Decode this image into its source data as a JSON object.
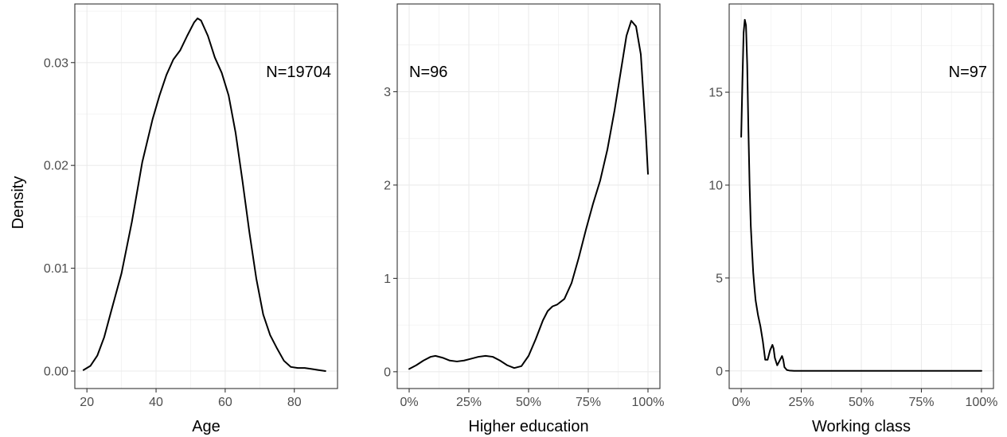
{
  "ylabel": "Density",
  "colors": {
    "line": "#000000",
    "grid": "#ebebeb",
    "panel_border": "#333333",
    "tick_text": "#4d4d4d"
  },
  "chart_data": [
    {
      "type": "line",
      "title": "",
      "xlabel": "Age",
      "ylabel": "Density",
      "annotation": "N=19704",
      "annotation_pos": "top-right",
      "xlim": [
        16.5,
        92.5
      ],
      "ylim": [
        -0.0017,
        0.0357
      ],
      "x_ticks": [
        20,
        40,
        60,
        80
      ],
      "x_tick_labels": [
        "20",
        "40",
        "60",
        "80"
      ],
      "y_ticks": [
        0,
        0.01,
        0.02,
        0.03
      ],
      "y_tick_labels": [
        "0.00",
        "0.01",
        "0.02",
        "0.03"
      ],
      "grid": true,
      "series": [
        {
          "x": [
            19,
            21,
            23,
            25,
            27,
            30,
            33,
            36,
            39,
            41,
            43,
            45,
            47,
            49,
            51,
            52,
            53,
            55,
            57,
            59,
            61,
            63,
            65,
            67,
            69,
            71,
            73,
            75,
            77,
            79,
            81,
            83,
            85,
            87,
            89
          ],
          "y": [
            0.0001,
            0.0005,
            0.0015,
            0.0033,
            0.0058,
            0.0095,
            0.0145,
            0.0203,
            0.0245,
            0.0268,
            0.0288,
            0.0303,
            0.0312,
            0.0326,
            0.0339,
            0.0343,
            0.0341,
            0.0326,
            0.0305,
            0.029,
            0.0268,
            0.0232,
            0.0185,
            0.0135,
            0.009,
            0.0055,
            0.0035,
            0.0022,
            0.001,
            0.0004,
            0.0003,
            0.0003,
            0.0002,
            0.0001,
            0.0
          ]
        }
      ]
    },
    {
      "type": "line",
      "title": "",
      "xlabel": "Higher education",
      "ylabel": "",
      "annotation": "N=96",
      "annotation_pos": "top-left",
      "xlim": [
        -0.05,
        1.05
      ],
      "ylim": [
        -0.18,
        3.94
      ],
      "x_ticks": [
        0,
        0.25,
        0.5,
        0.75,
        1
      ],
      "x_tick_labels": [
        "0%",
        "25%",
        "50%",
        "75%",
        "100%"
      ],
      "y_ticks": [
        0,
        1,
        2,
        3
      ],
      "y_tick_labels": [
        "0",
        "1",
        "2",
        "3"
      ],
      "grid": true,
      "series": [
        {
          "x": [
            0.0,
            0.03,
            0.06,
            0.09,
            0.11,
            0.14,
            0.17,
            0.2,
            0.23,
            0.26,
            0.29,
            0.32,
            0.35,
            0.38,
            0.41,
            0.44,
            0.47,
            0.5,
            0.53,
            0.56,
            0.58,
            0.6,
            0.62,
            0.65,
            0.68,
            0.71,
            0.74,
            0.77,
            0.8,
            0.83,
            0.86,
            0.89,
            0.91,
            0.93,
            0.95,
            0.97,
            0.99,
            1.0
          ],
          "y": [
            0.03,
            0.07,
            0.12,
            0.16,
            0.17,
            0.15,
            0.12,
            0.11,
            0.12,
            0.14,
            0.16,
            0.17,
            0.16,
            0.12,
            0.07,
            0.04,
            0.06,
            0.17,
            0.35,
            0.55,
            0.65,
            0.7,
            0.72,
            0.78,
            0.95,
            1.22,
            1.52,
            1.8,
            2.05,
            2.38,
            2.8,
            3.28,
            3.6,
            3.76,
            3.7,
            3.4,
            2.6,
            2.12
          ]
        }
      ]
    },
    {
      "type": "line",
      "title": "",
      "xlabel": "Working class",
      "ylabel": "",
      "annotation": "N=97",
      "annotation_pos": "top-right",
      "xlim": [
        -0.05,
        1.05
      ],
      "ylim": [
        -0.95,
        19.75
      ],
      "x_ticks": [
        0,
        0.25,
        0.5,
        0.75,
        1
      ],
      "x_tick_labels": [
        "0%",
        "25%",
        "50%",
        "75%",
        "100%"
      ],
      "y_ticks": [
        0,
        5,
        10,
        15
      ],
      "y_tick_labels": [
        "0",
        "5",
        "10",
        "15"
      ],
      "grid": true,
      "series": [
        {
          "x": [
            0.0,
            0.005,
            0.01,
            0.015,
            0.02,
            0.025,
            0.03,
            0.035,
            0.04,
            0.045,
            0.05,
            0.055,
            0.06,
            0.065,
            0.07,
            0.08,
            0.09,
            0.1,
            0.11,
            0.12,
            0.13,
            0.135,
            0.14,
            0.15,
            0.16,
            0.17,
            0.175,
            0.18,
            0.19,
            0.2,
            0.22,
            0.25,
            0.3,
            0.4,
            0.5,
            0.6,
            0.7,
            0.8,
            0.9,
            1.0
          ],
          "y": [
            12.6,
            15.5,
            18.2,
            18.9,
            18.6,
            16.5,
            13.0,
            10.0,
            7.8,
            6.5,
            5.3,
            4.5,
            3.8,
            3.4,
            3.0,
            2.4,
            1.6,
            0.6,
            0.6,
            1.1,
            1.4,
            1.2,
            0.7,
            0.3,
            0.55,
            0.8,
            0.6,
            0.2,
            0.05,
            0.02,
            0.0,
            0.0,
            0.0,
            0.0,
            0.0,
            0.0,
            0.0,
            0.0,
            0.0,
            0.0
          ]
        }
      ]
    }
  ]
}
